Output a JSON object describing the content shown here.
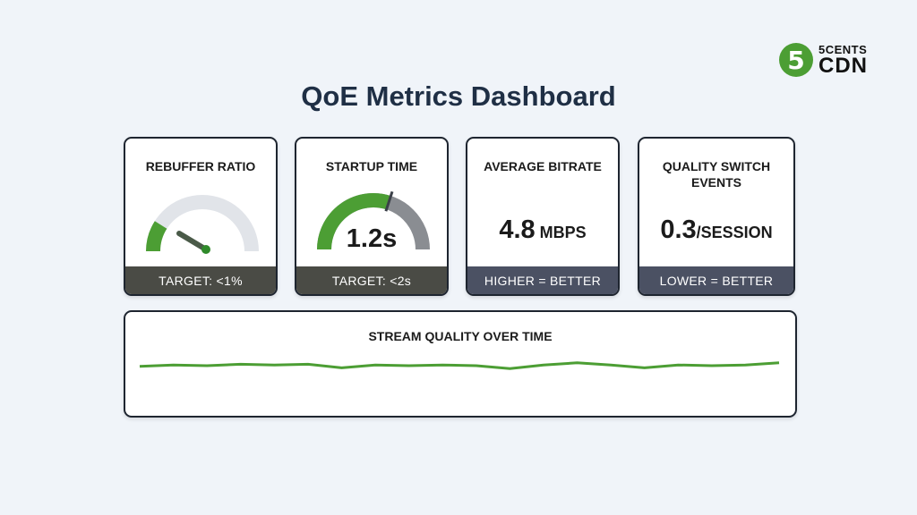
{
  "logo": {
    "badge": "5",
    "top": "5CENTS",
    "bottom": "CDN"
  },
  "title": "QoE Metrics Dashboard",
  "cards": [
    {
      "title": "REBUFFER RATIO",
      "footer": "TARGET: <1%",
      "gauge_fraction": 0.18,
      "gauge_color": "#4c9e34"
    },
    {
      "title": "STARTUP TIME",
      "value": "1.2s",
      "footer": "TARGET: <2s",
      "gauge_fraction": 0.6,
      "gauge_color": "#4c9e34"
    },
    {
      "title": "AVERAGE BITRATE",
      "value": "4.8",
      "unit": " MBPS",
      "footer": "HIGHER = BETTER"
    },
    {
      "title": "QUALITY SWITCH EVENTS",
      "value": "0.3",
      "unit": "/SESSION",
      "footer": "LOWER = BETTER"
    }
  ],
  "stream_quality": {
    "title": "STREAM QUALITY OVER TIME",
    "line_color": "#4c9e34",
    "values": [
      0.45,
      0.55,
      0.5,
      0.6,
      0.55,
      0.6,
      0.35,
      0.55,
      0.5,
      0.55,
      0.5,
      0.3,
      0.55,
      0.7,
      0.55,
      0.35,
      0.55,
      0.5,
      0.55,
      0.7
    ]
  }
}
